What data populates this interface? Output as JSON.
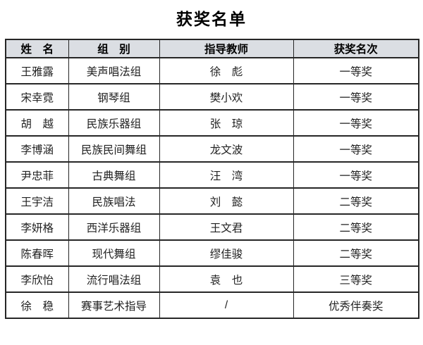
{
  "page": {
    "title": "获奖名单"
  },
  "table": {
    "headers": [
      "姓　名",
      "组　别",
      "指导教师",
      "获奖名次"
    ],
    "rows": [
      [
        "王雅露",
        "美声唱法组",
        "徐　彪",
        "一等奖"
      ],
      [
        "宋幸霓",
        "钢琴组",
        "樊小欢",
        "一等奖"
      ],
      [
        "胡　越",
        "民族乐器组",
        "张　琼",
        "一等奖"
      ],
      [
        "李博涵",
        "民族民间舞组",
        "龙文波",
        "一等奖"
      ],
      [
        "尹忠菲",
        "古典舞组",
        "汪　湾",
        "一等奖"
      ],
      [
        "王宇洁",
        "民族唱法",
        "刘　懿",
        "二等奖"
      ],
      [
        "李妍格",
        "西洋乐器组",
        "王文君",
        "二等奖"
      ],
      [
        "陈春晖",
        "现代舞组",
        "缪佳骏",
        "二等奖"
      ],
      [
        "李欣怡",
        "流行唱法组",
        "袁　也",
        "三等奖"
      ],
      [
        "徐　稳",
        "赛事艺术指导",
        "/",
        "优秀伴奏奖"
      ]
    ]
  },
  "colors": {
    "header_bg": "#dbdee3",
    "border": "#262626",
    "text": "#222222",
    "page_bg": "#ffffff"
  }
}
